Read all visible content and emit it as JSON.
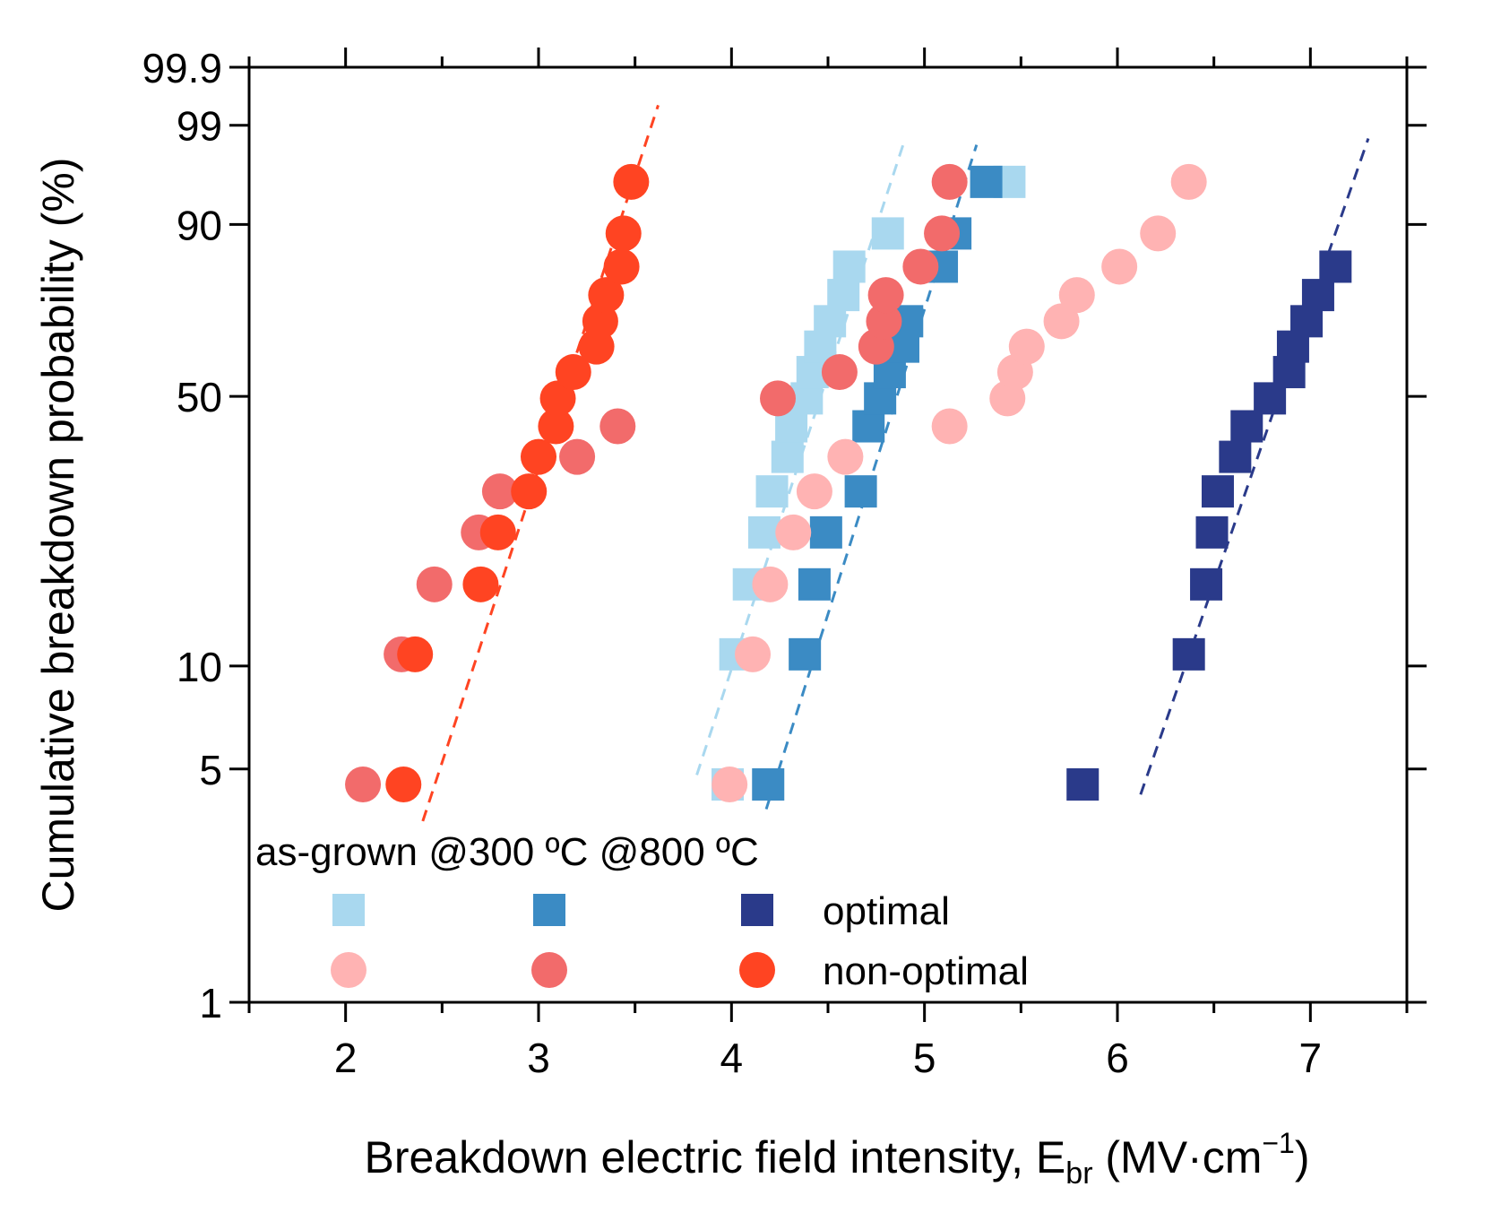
{
  "chart_data": {
    "type": "scatter",
    "xlabel": "Breakdown electric field intensity, ",
    "xlabel_symbol": "E",
    "xlabel_sub": "br",
    "xlabel_unit_open": " (MV·cm",
    "xlabel_sup": "−1",
    "xlabel_unit_close": ")",
    "ylabel": "Cumulative breakdown probability (%)",
    "xlim": [
      1.5,
      7.5
    ],
    "y_scale": "weibull",
    "x_ticks": [
      2,
      3,
      4,
      5,
      6,
      7
    ],
    "x_tick_labels": [
      "2",
      "3",
      "4",
      "5",
      "6",
      "7"
    ],
    "y_ticks": [
      1,
      5,
      10,
      50,
      90,
      99,
      99.9
    ],
    "y_tick_labels": [
      "1",
      "5",
      "10",
      "50",
      "90",
      "99",
      "99.9"
    ],
    "legend": {
      "position": "bottom-left",
      "column_headers": [
        "as-grown",
        "@300 ºC",
        "@800 ºC"
      ],
      "row_labels": [
        "optimal",
        "non-optimal"
      ]
    },
    "series": [
      {
        "name": "optimal as-grown",
        "marker": "square",
        "color": "#a9d8ef",
        "x": [
          3.98,
          4.02,
          4.09,
          4.17,
          4.21,
          4.29,
          4.31,
          4.39,
          4.42,
          4.46,
          4.51,
          4.58,
          4.61,
          4.81,
          5.44
        ],
        "y": [
          4.5,
          10.8,
          17.0,
          23.5,
          30.0,
          36.5,
          43.0,
          49.5,
          56.0,
          62.5,
          69.0,
          75.5,
          82.0,
          88.5,
          95.5
        ]
      },
      {
        "name": "optimal @300 ºC",
        "marker": "square",
        "color": "#3b8bc4",
        "x": [
          4.19,
          4.38,
          4.43,
          4.49,
          4.67,
          4.71,
          4.77,
          4.82,
          4.89,
          4.91,
          5.09,
          5.16,
          5.32
        ],
        "y": [
          4.5,
          10.8,
          17.0,
          23.5,
          30.0,
          43.0,
          49.5,
          56.0,
          62.5,
          69.0,
          82.0,
          88.5,
          95.5
        ]
      },
      {
        "name": "optimal @800 ºC",
        "marker": "square",
        "color": "#2a3a8a",
        "x": [
          5.82,
          6.37,
          6.46,
          6.49,
          6.52,
          6.61,
          6.67,
          6.79,
          6.89,
          6.91,
          6.98,
          7.04,
          7.13
        ],
        "y": [
          4.5,
          10.8,
          17.0,
          23.5,
          30.0,
          36.5,
          43.0,
          49.5,
          56.0,
          62.5,
          69.0,
          75.5,
          82.0
        ]
      },
      {
        "name": "non-optimal as-grown",
        "marker": "circle",
        "color": "#ffb3b3",
        "x": [
          3.99,
          4.11,
          4.2,
          4.32,
          4.43,
          4.59,
          5.13,
          5.43,
          5.47,
          5.53,
          5.71,
          5.79,
          6.01,
          6.21,
          6.37
        ],
        "y": [
          4.5,
          10.8,
          17.0,
          23.5,
          30.0,
          36.5,
          43.0,
          49.5,
          56.0,
          62.5,
          69.0,
          75.5,
          82.0,
          88.5,
          95.5
        ]
      },
      {
        "name": "non-optimal @300 ºC",
        "marker": "circle",
        "color": "#f26b6b",
        "x": [
          2.09,
          2.29,
          2.46,
          2.69,
          2.8,
          3.2,
          3.41,
          4.24,
          4.56,
          4.75,
          4.79,
          4.8,
          4.98,
          5.09,
          5.13
        ],
        "y": [
          4.5,
          10.8,
          17.0,
          23.5,
          30.0,
          36.5,
          43.0,
          49.5,
          56.0,
          62.5,
          69.0,
          75.5,
          82.0,
          88.5,
          95.5
        ]
      },
      {
        "name": "non-optimal @800 ºC",
        "marker": "circle",
        "color": "#ff4422",
        "x": [
          2.3,
          2.36,
          2.7,
          2.79,
          2.95,
          3.0,
          3.09,
          3.1,
          3.18,
          3.3,
          3.32,
          3.35,
          3.43,
          3.44,
          3.48
        ],
        "y": [
          4.5,
          10.8,
          17.0,
          23.5,
          30.0,
          36.5,
          43.0,
          49.5,
          56.0,
          62.5,
          69.0,
          75.5,
          82.0,
          88.5,
          95.5
        ]
      }
    ],
    "fits": [
      {
        "name": "fit optimal as-grown",
        "color": "#a9d8ef",
        "x": [
          3.82,
          4.9
        ],
        "y": [
          4.8,
          98.5
        ]
      },
      {
        "name": "fit optimal @300 ºC",
        "color": "#3b8bc4",
        "x": [
          4.18,
          5.27
        ],
        "y": [
          3.8,
          98.2
        ]
      },
      {
        "name": "fit optimal @800 ºC",
        "color": "#2a3a8a",
        "x": [
          6.12,
          7.3
        ],
        "y": [
          4.2,
          98.5
        ]
      },
      {
        "name": "fit non-optimal @800 ºC",
        "color": "#ff4422",
        "x": [
          2.4,
          3.62
        ],
        "y": [
          3.5,
          99.5
        ]
      }
    ]
  }
}
